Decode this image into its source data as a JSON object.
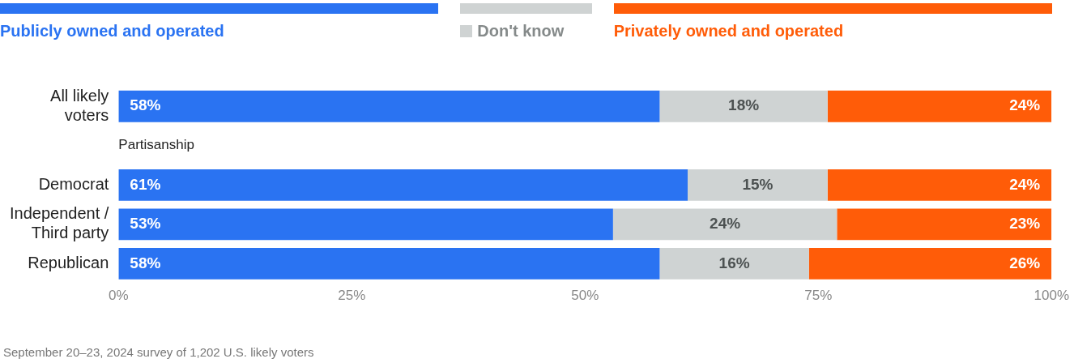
{
  "chart_data": {
    "type": "bar",
    "orientation": "horizontal",
    "stacked": true,
    "categories": [
      "All likely voters",
      null,
      "Democrat",
      "Independent / Third party",
      "Republican"
    ],
    "series": [
      {
        "name": "Publicly owned and operated",
        "color": "#2a73f2",
        "values": [
          58,
          null,
          61,
          53,
          58
        ],
        "value_labels": [
          "58%",
          null,
          "61%",
          "53%",
          "58%"
        ]
      },
      {
        "name": "Don't know",
        "color": "#cfd3d3",
        "values": [
          18,
          null,
          15,
          24,
          16
        ],
        "value_labels": [
          "18%",
          null,
          "15%",
          "24%",
          "16%"
        ]
      },
      {
        "name": "Privately owned and operated",
        "color": "#ff5c08",
        "values": [
          24,
          null,
          24,
          23,
          26
        ],
        "value_labels": [
          "24%",
          null,
          "24%",
          "23%",
          "26%"
        ]
      }
    ],
    "xlim": [
      0,
      100
    ],
    "xticks": [
      {
        "value": 0,
        "label": "0%"
      },
      {
        "value": 25,
        "label": "25%"
      },
      {
        "value": 50,
        "label": "50%"
      },
      {
        "value": 75,
        "label": "75%"
      },
      {
        "value": 100,
        "label": "100%"
      }
    ],
    "legend": "top",
    "annotations": [
      "Partisanship",
      "September 20–23, 2024 survey of 1,202 U.S. likely voters"
    ]
  }
}
